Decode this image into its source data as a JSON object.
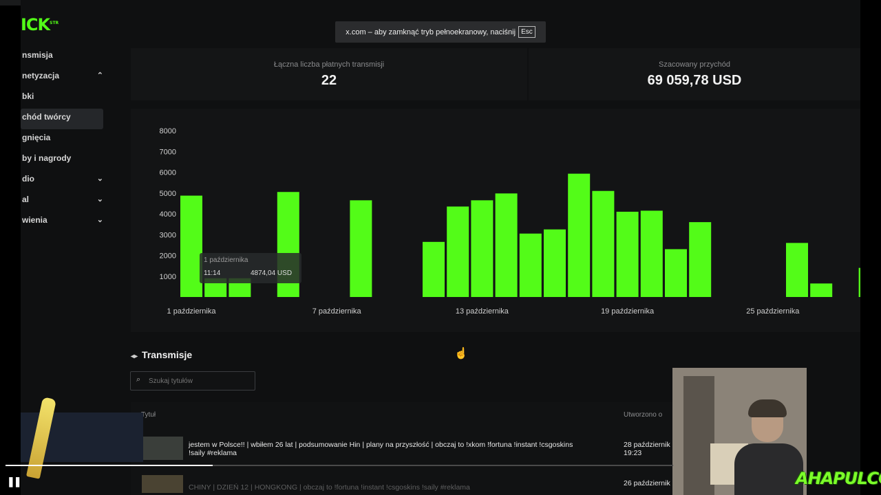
{
  "browser": {
    "fullscreen_notice": "x.com – aby zamknąć tryb pełnoekranowy, naciśnij",
    "esc_key": "Esc"
  },
  "app": {
    "logo_text": "ICK",
    "logo_sup": "STR"
  },
  "sidebar": {
    "items": [
      {
        "label": "nsmisja",
        "chevron": ""
      },
      {
        "label": "netyzacja",
        "chevron": "⌃"
      },
      {
        "label": "bki",
        "chevron": ""
      },
      {
        "label": "chód twórcy",
        "chevron": "",
        "active": true
      },
      {
        "label": "gnięcia",
        "chevron": ""
      },
      {
        "label": "by i nagrody",
        "chevron": ""
      },
      {
        "label": "dio",
        "chevron": "⌄"
      },
      {
        "label": "al",
        "chevron": "⌄"
      },
      {
        "label": "wienia",
        "chevron": "⌄"
      }
    ]
  },
  "stats": {
    "paid_streams_label": "Łączna liczba płatnych transmisji",
    "paid_streams_value": "22",
    "revenue_label": "Szacowany przychód",
    "revenue_value": "69 059,78 USD"
  },
  "chart_data": {
    "type": "bar",
    "title": "",
    "x": [
      "1 października",
      "2 października",
      "3 października",
      "4 października",
      "5 października",
      "6 października",
      "7 października",
      "8 października",
      "9 października",
      "10 października",
      "11 października",
      "12 października",
      "13 października",
      "14 października",
      "15 października",
      "16 października",
      "17 października",
      "18 października",
      "19 października",
      "20 października",
      "21 października",
      "22 października",
      "23 października",
      "24 października",
      "25 października",
      "26 października",
      "27 października",
      "28 października",
      "29 października"
    ],
    "values": [
      4874.04,
      900,
      900,
      0,
      5050,
      0,
      0,
      4650,
      0,
      0,
      2650,
      4350,
      4650,
      4980,
      3050,
      3250,
      5930,
      5100,
      4100,
      4150,
      2300,
      3600,
      0,
      0,
      0,
      2600,
      650,
      0,
      1400
    ],
    "y_ticks": [
      "1000",
      "2000",
      "3000",
      "4000",
      "5000",
      "6000",
      "7000",
      "8000"
    ],
    "x_tick_labels": [
      "1 października",
      "7 października",
      "13 października",
      "19 października",
      "25 października"
    ],
    "ylim": [
      0,
      8000
    ],
    "grid": false,
    "color": "#53fc18",
    "tooltip": {
      "date": "1 października",
      "time": "11:14",
      "value": "4874,04 USD"
    }
  },
  "streams": {
    "section_title": "Transmisje",
    "search_placeholder": "Szukaj tytułów",
    "col_title": "Tytuł",
    "col_created": "Utworzono o",
    "rows": [
      {
        "title": "jestem w Polsce!! | wbiłem 26 lat | podsumowanie Hin | plany na przyszłość | obczaj to !xkom !fortuna !instant !csgoskins !saily #reklama",
        "date": "28 październik",
        "time": "19:23"
      },
      {
        "title": "CHINY | DZIEŃ 12 | HONGKONG | obczaj to !fortuna !instant !csgoskins !saily #reklama",
        "date": "26 październik",
        "time": ""
      }
    ]
  },
  "player": {
    "progress": 0.31,
    "pause_glyph": "❚❚"
  },
  "overlay": {
    "brand": "AHAPULCO"
  },
  "colors": {
    "accent": "#53fc18",
    "background": "#0f1011",
    "card": "#141516"
  }
}
